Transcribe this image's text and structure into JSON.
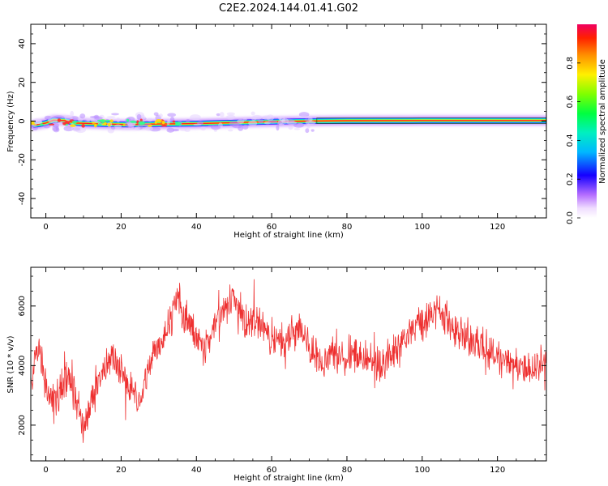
{
  "figure_title": "C2E2.2024.144.01.41.G02",
  "chart_data": [
    {
      "type": "heatmap",
      "xlabel": "Height of straight line (km)",
      "ylabel": "Frequency (Hz)",
      "xlim": [
        -4,
        133
      ],
      "ylim": [
        -50,
        50
      ],
      "xticks": [
        0,
        20,
        40,
        60,
        80,
        100,
        120
      ],
      "yticks": [
        -40,
        -20,
        0,
        20,
        40
      ],
      "ridge": [
        {
          "x": -3,
          "y": -2.0
        },
        {
          "x": 0,
          "y": -1.0
        },
        {
          "x": 2,
          "y": 0.5
        },
        {
          "x": 5,
          "y": 0.3
        },
        {
          "x": 8,
          "y": -1.0
        },
        {
          "x": 15,
          "y": -1.5
        },
        {
          "x": 22,
          "y": -1.8
        },
        {
          "x": 30,
          "y": -1.5
        },
        {
          "x": 40,
          "y": -1.3
        },
        {
          "x": 50,
          "y": -0.8
        },
        {
          "x": 60,
          "y": -0.3
        },
        {
          "x": 70,
          "y": 0.0
        },
        {
          "x": 80,
          "y": 0.2
        },
        {
          "x": 100,
          "y": 0.3
        },
        {
          "x": 120,
          "y": 0.3
        },
        {
          "x": 133,
          "y": 0.3
        }
      ],
      "colorbar": {
        "label": "Normalized spectral amplitude",
        "range": [
          0.0,
          1.0
        ],
        "ticks": [
          "0.0",
          "0.2",
          "0.4",
          "0.6",
          "0.8"
        ],
        "colormap": "rainbow"
      },
      "grid": false
    },
    {
      "type": "line",
      "xlabel": "Height of straight line (km)",
      "ylabel": "SNR (10 * v/v)",
      "xlim": [
        -4,
        133
      ],
      "ylim": [
        800,
        7300
      ],
      "xticks": [
        0,
        20,
        40,
        60,
        80,
        100,
        120
      ],
      "yticks": [
        2000,
        4000,
        6000
      ],
      "series": [
        {
          "color": "#ee3030",
          "x": [
            -4,
            -2,
            0,
            3,
            6,
            9,
            10,
            13,
            16,
            18,
            22,
            25,
            27,
            30,
            33,
            35,
            38,
            42,
            46,
            50,
            53,
            56,
            60,
            63,
            65,
            68,
            70,
            73,
            76,
            80,
            84,
            88,
            92,
            95,
            98,
            102,
            105,
            108,
            112,
            115,
            118,
            122,
            126,
            130,
            133
          ],
          "values": [
            3400,
            4800,
            3300,
            2900,
            3600,
            2500,
            1800,
            3100,
            4000,
            4300,
            3400,
            2700,
            3800,
            4600,
            5500,
            6200,
            5400,
            4500,
            5700,
            6200,
            5400,
            5500,
            4900,
            4700,
            5000,
            5300,
            4600,
            4100,
            4400,
            4200,
            4500,
            4000,
            4300,
            4900,
            5300,
            5700,
            5900,
            5300,
            4900,
            4800,
            4400,
            4000,
            3900,
            4000,
            4200
          ]
        }
      ],
      "noise_amplitude": 500,
      "grid": false
    }
  ]
}
